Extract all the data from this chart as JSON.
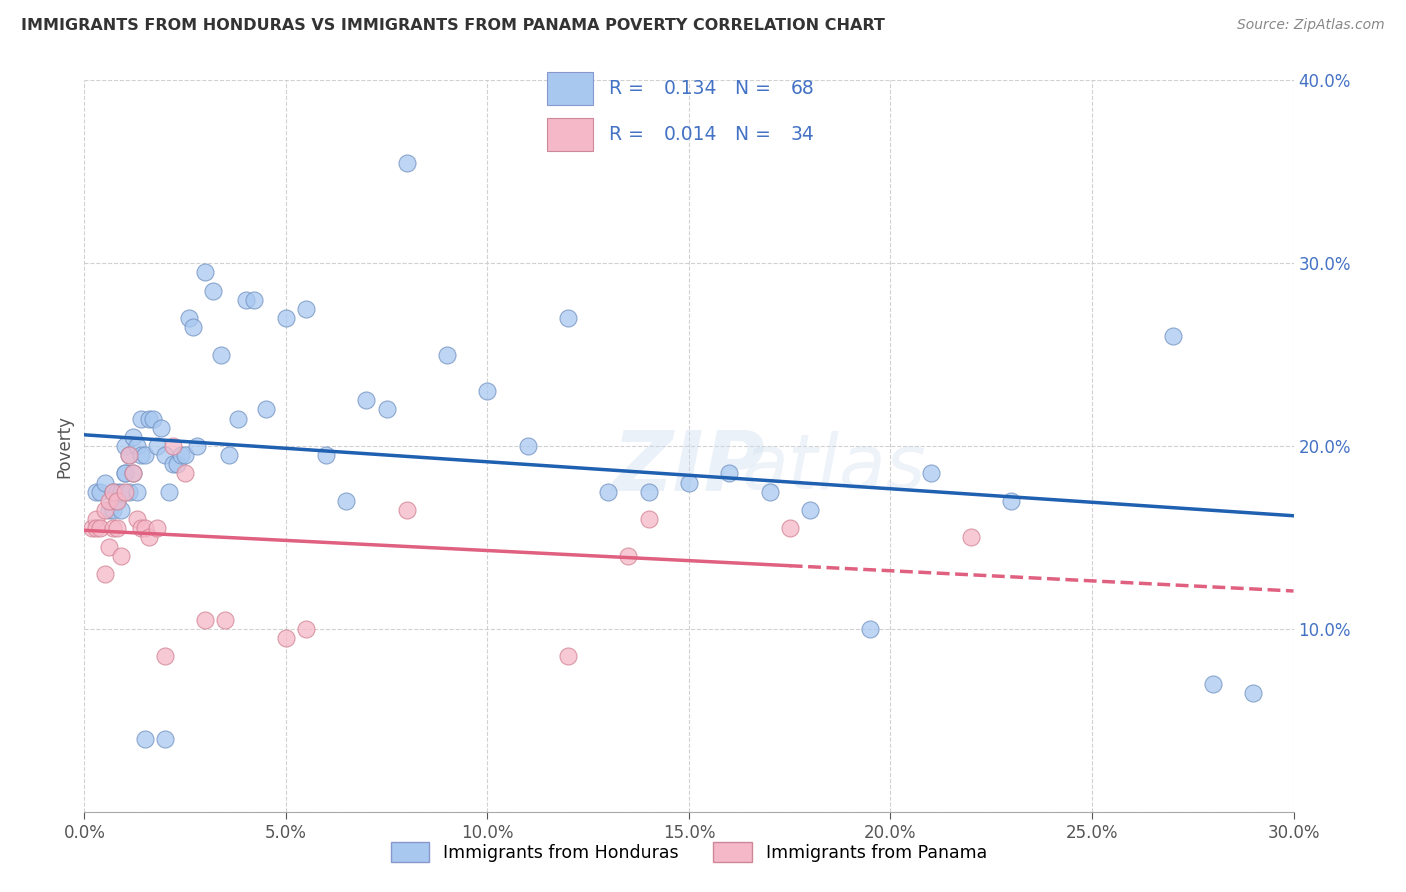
{
  "title": "IMMIGRANTS FROM HONDURAS VS IMMIGRANTS FROM PANAMA POVERTY CORRELATION CHART",
  "source": "Source: ZipAtlas.com",
  "ylabel": "Poverty",
  "legend1_label": "Immigrants from Honduras",
  "legend2_label": "Immigrants from Panama",
  "R1": 0.134,
  "N1": 68,
  "R2": 0.014,
  "N2": 34,
  "xlim": [
    0.0,
    0.3
  ],
  "ylim": [
    0.0,
    0.4
  ],
  "xticks": [
    0.0,
    0.05,
    0.1,
    0.15,
    0.2,
    0.25,
    0.3
  ],
  "yticks": [
    0.0,
    0.1,
    0.2,
    0.3,
    0.4
  ],
  "color_honduras": "#A8C8F0",
  "color_panama": "#F5B8C8",
  "trendline_honduras": "#2060B0",
  "trendline_panama": "#E06080",
  "right_axis_color": "#4472C4",
  "legend_text_color": "#4472C4",
  "watermark": "ZIPatlas",
  "honduras_x": [
    0.003,
    0.004,
    0.005,
    0.006,
    0.007,
    0.007,
    0.008,
    0.008,
    0.009,
    0.009,
    0.01,
    0.01,
    0.01,
    0.011,
    0.011,
    0.012,
    0.012,
    0.013,
    0.013,
    0.014,
    0.014,
    0.015,
    0.016,
    0.017,
    0.018,
    0.019,
    0.02,
    0.021,
    0.022,
    0.023,
    0.024,
    0.025,
    0.026,
    0.027,
    0.028,
    0.03,
    0.032,
    0.034,
    0.036,
    0.038,
    0.04,
    0.042,
    0.045,
    0.05,
    0.055,
    0.06,
    0.065,
    0.07,
    0.075,
    0.08,
    0.09,
    0.1,
    0.11,
    0.12,
    0.13,
    0.14,
    0.15,
    0.16,
    0.17,
    0.18,
    0.195,
    0.21,
    0.23,
    0.27,
    0.28,
    0.29,
    0.015,
    0.02
  ],
  "honduras_y": [
    0.175,
    0.175,
    0.18,
    0.165,
    0.165,
    0.175,
    0.17,
    0.175,
    0.165,
    0.175,
    0.185,
    0.185,
    0.2,
    0.175,
    0.195,
    0.185,
    0.205,
    0.175,
    0.2,
    0.195,
    0.215,
    0.195,
    0.215,
    0.215,
    0.2,
    0.21,
    0.195,
    0.175,
    0.19,
    0.19,
    0.195,
    0.195,
    0.27,
    0.265,
    0.2,
    0.295,
    0.285,
    0.25,
    0.195,
    0.215,
    0.28,
    0.28,
    0.22,
    0.27,
    0.275,
    0.195,
    0.17,
    0.225,
    0.22,
    0.355,
    0.25,
    0.23,
    0.2,
    0.27,
    0.175,
    0.175,
    0.18,
    0.185,
    0.175,
    0.165,
    0.1,
    0.185,
    0.17,
    0.26,
    0.07,
    0.065,
    0.04,
    0.04
  ],
  "panama_x": [
    0.002,
    0.003,
    0.003,
    0.004,
    0.005,
    0.005,
    0.006,
    0.006,
    0.007,
    0.007,
    0.008,
    0.008,
    0.009,
    0.01,
    0.011,
    0.012,
    0.013,
    0.014,
    0.015,
    0.016,
    0.018,
    0.02,
    0.022,
    0.025,
    0.03,
    0.035,
    0.05,
    0.055,
    0.08,
    0.12,
    0.135,
    0.14,
    0.175,
    0.22
  ],
  "panama_y": [
    0.155,
    0.16,
    0.155,
    0.155,
    0.165,
    0.13,
    0.17,
    0.145,
    0.155,
    0.175,
    0.155,
    0.17,
    0.14,
    0.175,
    0.195,
    0.185,
    0.16,
    0.155,
    0.155,
    0.15,
    0.155,
    0.085,
    0.2,
    0.185,
    0.105,
    0.105,
    0.095,
    0.1,
    0.165,
    0.085,
    0.14,
    0.16,
    0.155,
    0.15
  ]
}
